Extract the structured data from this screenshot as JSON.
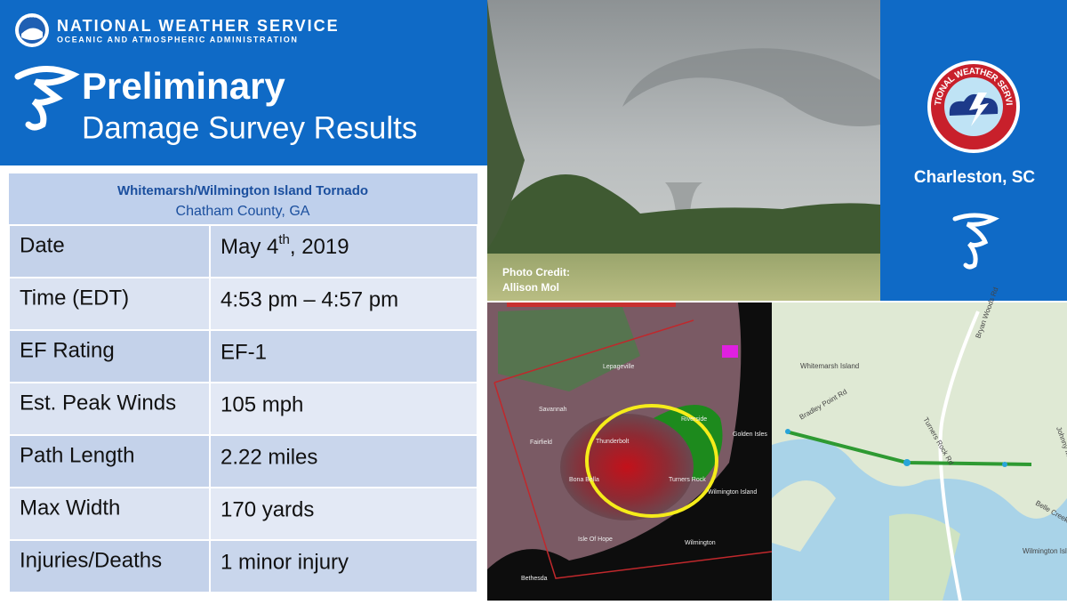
{
  "header": {
    "agency": "NATIONAL WEATHER SERVICE",
    "agency_sub": "OCEANIC AND ATMOSPHERIC ADMINISTRATION",
    "noaa": "NOAA",
    "title_line1": "Preliminary",
    "title_line2": "Damage Survey Results"
  },
  "table": {
    "title": "Whitemarsh/Wilmington  Island Tornado",
    "subtitle": "Chatham County, GA",
    "rows": [
      [
        "Date",
        {
          "main": "May 4",
          "sup": "th",
          "rest": ", 2019"
        }
      ],
      [
        "Time (EDT)",
        "4:53 pm – 4:57 pm"
      ],
      [
        "EF Rating",
        "EF-1"
      ],
      [
        "Est. Peak Winds",
        "105 mph"
      ],
      [
        "Path Length",
        "2.22 miles"
      ],
      [
        "Max Width",
        "170 yards"
      ],
      [
        "Injuries/Deaths",
        "1 minor injury"
      ]
    ]
  },
  "photo": {
    "credit_line1": "Photo  Credit:",
    "credit_line2": "Allison Mol"
  },
  "office": {
    "logo_text": "NATIONAL WEATHER SERVICE",
    "name": "Charleston, SC"
  },
  "radar": {
    "labels": [
      "Lepageville",
      "Savannah",
      "Thunderbolt",
      "Fairfield",
      "Riverside",
      "Golden Isles",
      "Bona Bella",
      "Turners Rock",
      "Wilmington Island",
      "Isle Of Hope",
      "Wilmington",
      "Bethesda"
    ]
  },
  "map": {
    "labels": [
      "Whitemarsh Island",
      "Bryan Woods Rd",
      "Bradley Point Rd",
      "Turners Rock Rd",
      "Johnny Mercer",
      "Wilmington Island",
      "Belle Creek"
    ]
  }
}
